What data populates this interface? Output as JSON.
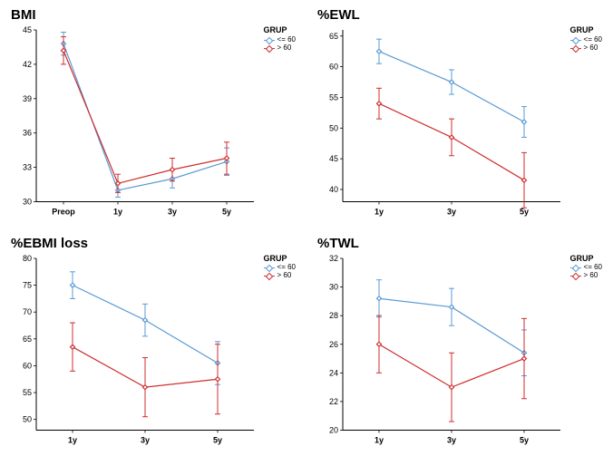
{
  "colors": {
    "group_le60": "#5b9bd5",
    "group_gt60": "#d02e2e",
    "axis": "#000000",
    "bg": "#ffffff"
  },
  "legend": {
    "title": "GRUP",
    "items": [
      {
        "key": "le60",
        "label": "<= 60",
        "color": "#5b9bd5"
      },
      {
        "key": "gt60",
        "label": "> 60",
        "color": "#d02e2e"
      }
    ]
  },
  "panels": [
    {
      "id": "bmi",
      "title": "BMI",
      "categories": [
        "Preop",
        "1y",
        "3y",
        "5y"
      ],
      "ylim": [
        30,
        45
      ],
      "yticks": [
        30,
        33,
        36,
        39,
        42,
        45
      ],
      "series": {
        "le60": {
          "y": [
            43.8,
            31.0,
            32.0,
            33.5
          ],
          "err": [
            1.0,
            0.6,
            0.8,
            1.2
          ]
        },
        "gt60": {
          "y": [
            43.2,
            31.6,
            32.8,
            33.8
          ],
          "err": [
            1.2,
            0.8,
            1.0,
            1.4
          ]
        }
      }
    },
    {
      "id": "ewl",
      "title": "%EWL",
      "categories": [
        "1y",
        "3y",
        "5y"
      ],
      "ylim": [
        38,
        66
      ],
      "yticks": [
        40,
        45,
        50,
        55,
        60,
        65
      ],
      "series": {
        "le60": {
          "y": [
            62.5,
            57.5,
            51.0
          ],
          "err": [
            2.0,
            2.0,
            2.5
          ]
        },
        "gt60": {
          "y": [
            54.0,
            48.5,
            41.5
          ],
          "err": [
            2.5,
            3.0,
            4.5
          ]
        }
      }
    },
    {
      "id": "ebmi",
      "title": "%EBMI loss",
      "categories": [
        "1y",
        "3y",
        "5y"
      ],
      "ylim": [
        48,
        80
      ],
      "yticks": [
        50,
        55,
        60,
        65,
        70,
        75,
        80
      ],
      "series": {
        "le60": {
          "y": [
            75.0,
            68.5,
            60.5
          ],
          "err": [
            2.5,
            3.0,
            4.0
          ]
        },
        "gt60": {
          "y": [
            63.5,
            56.0,
            57.5
          ],
          "err": [
            4.5,
            5.5,
            6.5
          ]
        }
      }
    },
    {
      "id": "twl",
      "title": "%TWL",
      "categories": [
        "1y",
        "3y",
        "5y"
      ],
      "ylim": [
        20,
        32
      ],
      "yticks": [
        20,
        22,
        24,
        26,
        28,
        30,
        32
      ],
      "series": {
        "le60": {
          "y": [
            29.2,
            28.6,
            25.4
          ],
          "err": [
            1.3,
            1.3,
            1.6
          ]
        },
        "gt60": {
          "y": [
            26.0,
            23.0,
            25.0
          ],
          "err": [
            2.0,
            2.4,
            2.8
          ]
        }
      }
    }
  ],
  "style": {
    "title_fontsize": 15,
    "title_weight": "bold",
    "axis_fontsize": 9,
    "legend_fontsize": 8,
    "line_width": 1.2,
    "marker_size": 5,
    "cap_width": 6
  }
}
